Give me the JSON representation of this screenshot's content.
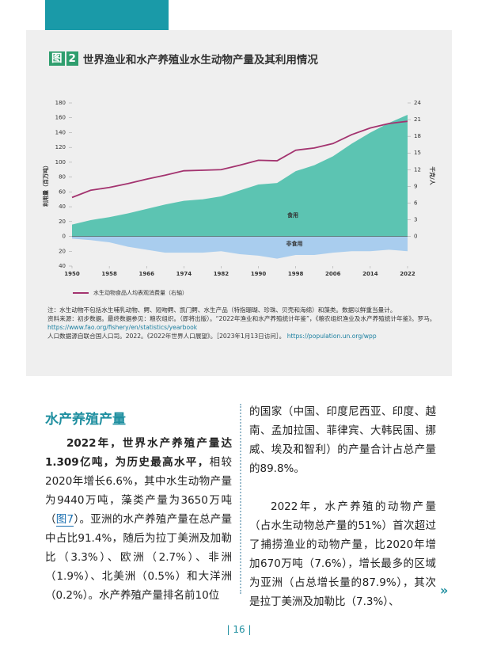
{
  "figure_label": "图",
  "figure_number": "2",
  "chart_data": {
    "type": "area",
    "title": "世界渔业和水产养殖业水生动物产量及其利用情况",
    "y_label": "利用量（百万吨）",
    "y2_label": "千克/人",
    "x": [
      1950,
      1954,
      1958,
      1962,
      1966,
      1970,
      1974,
      1978,
      1982,
      1986,
      1990,
      1994,
      1998,
      2002,
      2006,
      2010,
      2014,
      2018,
      2022
    ],
    "xlim": [
      1950,
      2022
    ],
    "xticks": [
      1950,
      1958,
      1966,
      1974,
      1982,
      1990,
      1998,
      2006,
      2014,
      2022
    ],
    "ylim": [
      -40,
      180
    ],
    "yticks": [
      {
        "value": -40,
        "label": "40"
      },
      {
        "value": -20,
        "label": "20"
      },
      0,
      20,
      40,
      60,
      80,
      100,
      120,
      140,
      160,
      180
    ],
    "y2lim": [
      -5.33,
      24
    ],
    "y2ticks": [
      0,
      3,
      6,
      9,
      12,
      15,
      18,
      21,
      24
    ],
    "series": [
      {
        "name": "食用",
        "color": "#5cc4b2",
        "values": [
          16,
          22,
          26,
          31,
          37,
          43,
          48,
          50,
          54,
          62,
          70,
          72,
          88,
          96,
          108,
          125,
          140,
          153,
          164
        ]
      },
      {
        "name": "非食用",
        "color": "#a9cdee",
        "values": [
          -3,
          -5,
          -8,
          -14,
          -18,
          -22,
          -22,
          -22,
          -20,
          -24,
          -26,
          -30,
          -25,
          -25,
          -22,
          -20,
          -20,
          -18,
          -20
        ]
      },
      {
        "name": "水生动物食品人均表观消费量（右轴）",
        "color": "#a3336f",
        "axis": "y2",
        "values": [
          7.0,
          8.3,
          8.8,
          9.5,
          10.3,
          11.0,
          11.8,
          11.9,
          12.0,
          12.8,
          13.7,
          13.6,
          15.5,
          15.9,
          16.7,
          18.3,
          19.5,
          20.3,
          20.7
        ]
      }
    ]
  },
  "notes": [
    "注：水生动物不包括水生哺乳动物、鳄、短吻鳄、凯门鳄、水生产品（特指珊瑚、珍珠、贝壳和海绵）和藻类。数据以鲜重当量计。",
    "资料来源：初步数据。最终数据参见：粮农组织。（即将出版）。“2022年渔业和水产养殖统计年鉴”，《粮农组织渔业及水产养殖统计年鉴》。罗马。",
    "https://www.fao.org/fishery/en/statistics/yearbook",
    "人口数据源自联合国人口司。2022。《2022年世界人口展望》。［2023年1月13日访问］。",
    "https://population.un.org/wpp"
  ],
  "section": {
    "heading": "水产养殖产量",
    "p1": {
      "bold": "2022年，世界水产养殖产量达1.309亿吨，为历史最高水平，",
      "text1": "相较2020年增长6.6%，其中水生动物产量为9440万吨，藻类产量为3650万吨（",
      "link": "图7",
      "text2": "）。亚洲的水产养殖产量在总产量中占比91.4%，随后为拉丁美洲及加勒比（3.3%）、欧洲（2.7%）、非洲（1.9%）、北美洲（0.5%）和大洋洲（0.2%）。水产养殖产量排名前10位"
    },
    "p1_cont": "的国家（中国、印度尼西亚、印度、越南、孟加拉国、菲律宾、大韩民国、挪威、埃及和智利）的产量合计占总产量的89.8%。",
    "p2": "2022年，水产养殖的动物产量（占水生动物总产量的51%）首次超过了捕捞渔业的动物产量，比2020年增加670万吨（7.6%），增长最多的区域为亚洲（占总增长量的87.9%），其次是拉丁美洲及加勒比（7.3%）、"
  },
  "more": "»",
  "page_number": "| 16 |"
}
